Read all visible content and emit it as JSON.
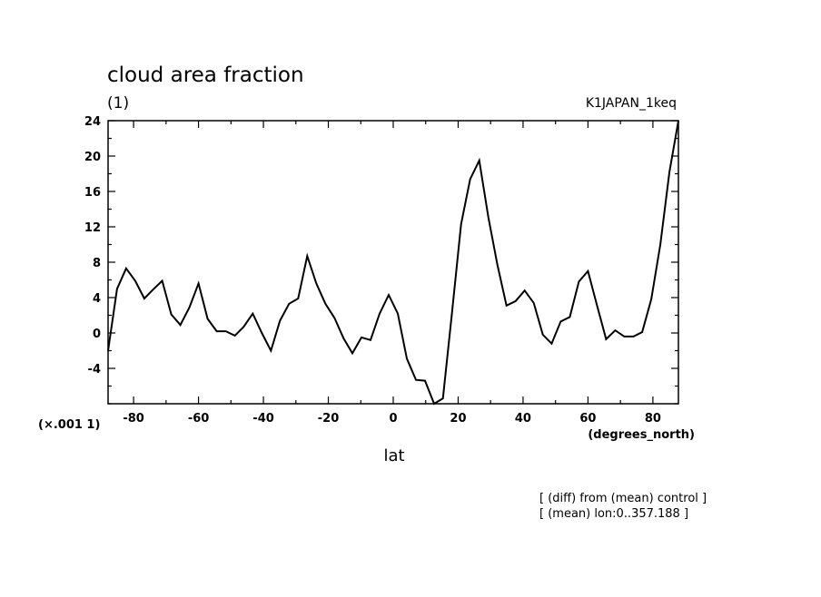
{
  "chart_data": {
    "type": "line",
    "title": "cloud area fraction",
    "units": "(1)",
    "dataset_label": "K1JAPAN_1keq",
    "scale_note": "(×.001 1)",
    "xlabel": "lat",
    "xunits": "(degrees_north)",
    "ylabel": "",
    "xlim": [
      -87.8638,
      87.8638
    ],
    "ylim": [
      -8,
      24
    ],
    "xticks": [
      -80,
      -60,
      -40,
      -20,
      0,
      20,
      40,
      60,
      80
    ],
    "yticks": [
      -4,
      0,
      4,
      8,
      12,
      16,
      20,
      24
    ],
    "grid": false,
    "legend": "none",
    "series": [
      {
        "color": "#000000",
        "x": [
          -87.86,
          -85.1,
          -82.3,
          -79.5,
          -76.7,
          -74.0,
          -71.2,
          -68.4,
          -65.6,
          -62.8,
          -60.0,
          -57.2,
          -54.4,
          -51.6,
          -48.8,
          -46.1,
          -43.3,
          -40.5,
          -37.7,
          -34.9,
          -32.1,
          -29.3,
          -26.5,
          -23.7,
          -20.9,
          -18.1,
          -15.3,
          -12.6,
          -9.8,
          -7.0,
          -4.2,
          -1.4,
          1.4,
          4.2,
          7.0,
          9.8,
          12.6,
          15.3,
          18.1,
          20.9,
          23.7,
          26.5,
          29.3,
          32.1,
          34.9,
          37.7,
          40.5,
          43.3,
          46.1,
          48.8,
          51.6,
          54.4,
          57.2,
          60.0,
          62.8,
          65.6,
          68.4,
          71.2,
          74.0,
          76.7,
          79.5,
          82.3,
          85.1,
          87.86
        ],
        "y": [
          -2.0,
          5.0,
          7.3,
          5.9,
          3.9,
          4.9,
          5.9,
          2.1,
          0.9,
          2.9,
          5.6,
          1.6,
          0.2,
          0.2,
          -0.3,
          0.7,
          2.2,
          0.0,
          -2.0,
          1.4,
          3.3,
          3.9,
          8.7,
          5.6,
          3.3,
          1.7,
          -0.6,
          -2.3,
          -0.5,
          -0.8,
          2.2,
          4.3,
          2.2,
          -2.9,
          -5.3,
          -5.4,
          -8.0,
          -7.4,
          2.3,
          12.3,
          17.4,
          19.5,
          13.1,
          7.7,
          3.1,
          3.6,
          4.8,
          3.4,
          -0.2,
          -1.2,
          1.3,
          1.8,
          5.8,
          7.0,
          3.1,
          -0.7,
          0.3,
          -0.4,
          -0.4,
          0.1,
          3.8,
          10.0,
          18.2,
          24.0
        ]
      }
    ]
  },
  "footnotes": [
    "[ (diff) from (mean) control ]",
    "[ (mean) lon:0..357.188 ]"
  ]
}
